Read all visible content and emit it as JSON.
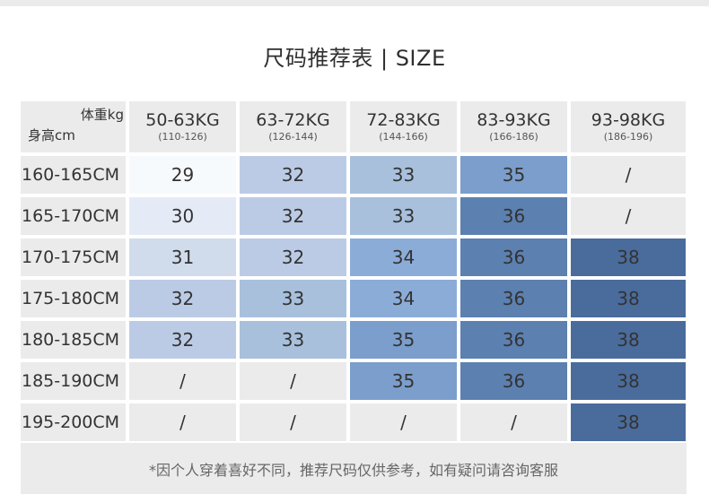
{
  "title": "尺码推荐表 | SIZE",
  "corner": {
    "weight_label": "体重kg",
    "height_label": "身高cm"
  },
  "columns": [
    {
      "kg": "50-63KG",
      "range": "(110-126)"
    },
    {
      "kg": "63-72KG",
      "range": "(126-144)"
    },
    {
      "kg": "72-83KG",
      "range": "(144-166)"
    },
    {
      "kg": "83-93KG",
      "range": "(166-186)"
    },
    {
      "kg": "93-98KG",
      "range": "(186-196)"
    }
  ],
  "rows": [
    {
      "label": "160-165CM",
      "cells": [
        "29",
        "32",
        "33",
        "35",
        "/"
      ]
    },
    {
      "label": "165-170CM",
      "cells": [
        "30",
        "32",
        "33",
        "36",
        "/"
      ]
    },
    {
      "label": "170-175CM",
      "cells": [
        "31",
        "32",
        "34",
        "36",
        "38"
      ]
    },
    {
      "label": "175-180CM",
      "cells": [
        "32",
        "33",
        "34",
        "36",
        "38"
      ]
    },
    {
      "label": "180-185CM",
      "cells": [
        "32",
        "33",
        "35",
        "36",
        "38"
      ]
    },
    {
      "label": "185-190CM",
      "cells": [
        "/",
        "/",
        "35",
        "36",
        "38"
      ]
    },
    {
      "label": "195-200CM",
      "cells": [
        "/",
        "/",
        "/",
        "/",
        "38"
      ]
    }
  ],
  "size_colors": {
    "29": "#f7fafd",
    "30": "#e5ebf6",
    "31": "#d0dcec",
    "32": "#bccbe5",
    "33": "#a8c0dc",
    "34": "#8cacd8",
    "35": "#7b9ecc",
    "36": "#5c80b0",
    "38": "#4a6c9c",
    "/": "#ebebeb"
  },
  "note": "*因个人穿着喜好不同，推荐尺码仅供参考，如有疑问请咨询客服"
}
